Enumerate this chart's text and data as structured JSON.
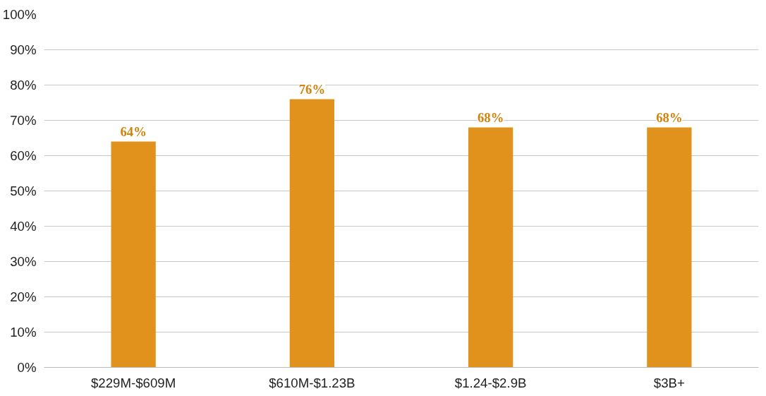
{
  "chart_data": {
    "type": "bar",
    "categories": [
      "$229M-$609M",
      "$610M-$1.23B",
      "$1.24-$2.9B",
      "$3B+"
    ],
    "values": [
      64,
      76,
      68,
      68
    ],
    "value_labels": [
      "64%",
      "76%",
      "68%",
      "68%"
    ],
    "color": "#e0921c",
    "ylim": [
      0,
      100
    ],
    "yticks": [
      {
        "value": 0,
        "label": "0%"
      },
      {
        "value": 10,
        "label": "10%"
      },
      {
        "value": 20,
        "label": "20%"
      },
      {
        "value": 30,
        "label": "30%"
      },
      {
        "value": 40,
        "label": "40%"
      },
      {
        "value": 50,
        "label": "50%"
      },
      {
        "value": 60,
        "label": "60%"
      },
      {
        "value": 70,
        "label": "70%"
      },
      {
        "value": 80,
        "label": "80%"
      },
      {
        "value": 90,
        "label": "90%"
      },
      {
        "value": 100,
        "label": "100%"
      }
    ],
    "grid": "y"
  }
}
